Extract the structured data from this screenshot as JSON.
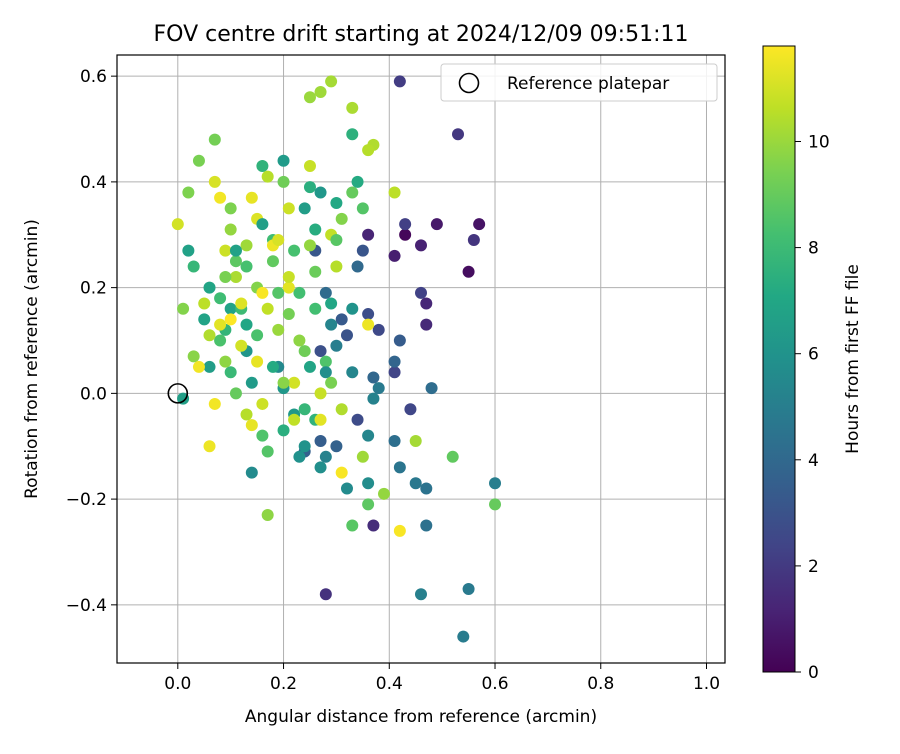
{
  "chart_data": {
    "type": "scatter",
    "title": "FOV centre drift starting at 2024/12/09 09:51:11",
    "xlabel": "Angular distance from reference (arcmin)",
    "ylabel": "Rotation from reference (arcmin)",
    "xlim": [
      -0.115,
      1.035
    ],
    "ylim": [
      -0.51,
      0.64
    ],
    "xticks": [
      0.0,
      0.2,
      0.4,
      0.6,
      0.8,
      1.0
    ],
    "xtick_labels": [
      "0.0",
      "0.2",
      "0.4",
      "0.6",
      "0.8",
      "1.0"
    ],
    "yticks": [
      -0.4,
      -0.2,
      0.0,
      0.2,
      0.4,
      0.6
    ],
    "ytick_labels": [
      "−0.4",
      "−0.2",
      "0.0",
      "0.2",
      "0.4",
      "0.6"
    ],
    "grid": true,
    "legend": {
      "position": "top-right",
      "entries": [
        "Reference platepar"
      ]
    },
    "reference_point": {
      "x": 0.0,
      "y": 0.0
    },
    "colorbar": {
      "label": "Hours from first FF file",
      "min": 0,
      "max": 11.8,
      "colormap": "viridis",
      "ticks": [
        0,
        2,
        4,
        6,
        8,
        10
      ],
      "tick_labels": [
        "0",
        "2",
        "4",
        "6",
        "8",
        "10"
      ]
    },
    "points": [
      [
        0.43,
        0.3,
        0.2
      ],
      [
        0.55,
        0.23,
        0.4
      ],
      [
        0.57,
        0.32,
        0.6
      ],
      [
        0.49,
        0.32,
        0.8
      ],
      [
        0.41,
        0.26,
        1.0
      ],
      [
        0.46,
        0.28,
        1.1
      ],
      [
        0.36,
        0.3,
        1.2
      ],
      [
        0.47,
        0.17,
        1.3
      ],
      [
        0.47,
        0.13,
        1.4
      ],
      [
        0.37,
        -0.25,
        1.5
      ],
      [
        0.28,
        -0.38,
        1.7
      ],
      [
        0.56,
        0.29,
        1.8
      ],
      [
        0.53,
        0.49,
        1.9
      ],
      [
        0.42,
        0.59,
        2.1
      ],
      [
        0.43,
        0.32,
        2.2
      ],
      [
        0.46,
        0.19,
        2.3
      ],
      [
        0.41,
        0.04,
        2.4
      ],
      [
        0.44,
        -0.03,
        2.5
      ],
      [
        0.38,
        0.12,
        2.6
      ],
      [
        0.34,
        -0.05,
        2.7
      ],
      [
        0.36,
        0.15,
        2.8
      ],
      [
        0.27,
        0.08,
        2.9
      ],
      [
        0.32,
        0.11,
        3.0
      ],
      [
        0.35,
        0.27,
        3.1
      ],
      [
        0.26,
        0.27,
        3.2
      ],
      [
        0.31,
        0.14,
        3.3
      ],
      [
        0.42,
        0.1,
        3.4
      ],
      [
        0.27,
        -0.09,
        3.5
      ],
      [
        0.24,
        -0.11,
        3.6
      ],
      [
        0.3,
        -0.1,
        3.7
      ],
      [
        0.41,
        0.06,
        3.8
      ],
      [
        0.37,
        0.03,
        3.9
      ],
      [
        0.34,
        0.24,
        4.0
      ],
      [
        0.28,
        0.19,
        4.1
      ],
      [
        0.48,
        0.01,
        4.2
      ],
      [
        0.41,
        -0.09,
        4.3
      ],
      [
        0.47,
        -0.25,
        4.4
      ],
      [
        0.47,
        -0.18,
        4.5
      ],
      [
        0.42,
        -0.14,
        4.6
      ],
      [
        0.45,
        -0.17,
        4.7
      ],
      [
        0.55,
        -0.37,
        4.8
      ],
      [
        0.54,
        -0.46,
        4.9
      ],
      [
        0.6,
        -0.17,
        5.0
      ],
      [
        0.46,
        -0.38,
        5.1
      ],
      [
        0.37,
        -0.01,
        5.2
      ],
      [
        0.29,
        0.13,
        5.3
      ],
      [
        0.33,
        0.04,
        5.4
      ],
      [
        0.19,
        0.05,
        5.5
      ],
      [
        0.14,
        -0.15,
        5.6
      ],
      [
        0.36,
        -0.17,
        5.7
      ],
      [
        0.27,
        -0.14,
        5.8
      ],
      [
        0.23,
        -0.12,
        5.9
      ],
      [
        0.24,
        -0.1,
        6.0
      ],
      [
        0.13,
        0.08,
        6.1
      ],
      [
        0.2,
        0.01,
        6.2
      ],
      [
        0.22,
        -0.04,
        6.3
      ],
      [
        0.14,
        0.02,
        6.4
      ],
      [
        0.06,
        0.05,
        6.5
      ],
      [
        0.01,
        -0.01,
        6.6
      ],
      [
        0.02,
        0.27,
        6.7
      ],
      [
        0.1,
        0.16,
        6.8
      ],
      [
        0.25,
        0.05,
        6.9
      ],
      [
        0.29,
        0.17,
        7.0
      ],
      [
        0.3,
        0.36,
        7.1
      ],
      [
        0.34,
        0.4,
        7.2
      ],
      [
        0.26,
        0.31,
        7.3
      ],
      [
        0.25,
        0.39,
        7.4
      ],
      [
        0.33,
        0.49,
        7.5
      ],
      [
        0.16,
        0.43,
        7.6
      ],
      [
        0.09,
        0.12,
        7.7
      ],
      [
        0.03,
        0.24,
        7.8
      ],
      [
        0.1,
        0.04,
        7.9
      ],
      [
        0.12,
        0.16,
        8.0
      ],
      [
        0.18,
        0.29,
        8.1
      ],
      [
        0.23,
        0.19,
        8.2
      ],
      [
        0.13,
        0.24,
        8.3
      ],
      [
        0.08,
        0.1,
        8.4
      ],
      [
        0.16,
        -0.08,
        8.5
      ],
      [
        0.17,
        -0.11,
        8.6
      ],
      [
        0.33,
        -0.25,
        8.7
      ],
      [
        0.36,
        -0.21,
        8.8
      ],
      [
        0.52,
        -0.12,
        8.9
      ],
      [
        0.6,
        -0.21,
        9.0
      ],
      [
        0.26,
        0.23,
        9.1
      ],
      [
        0.2,
        0.4,
        9.2
      ],
      [
        0.07,
        0.48,
        9.3
      ],
      [
        0.04,
        0.44,
        9.4
      ],
      [
        0.02,
        0.38,
        9.5
      ],
      [
        0.01,
        0.16,
        9.6
      ],
      [
        0.03,
        0.07,
        9.7
      ],
      [
        0.17,
        -0.23,
        9.8
      ],
      [
        0.39,
        -0.19,
        9.9
      ],
      [
        0.25,
        0.56,
        10.0
      ],
      [
        0.27,
        0.57,
        10.1
      ],
      [
        0.29,
        0.59,
        10.2
      ],
      [
        0.33,
        0.54,
        10.3
      ],
      [
        0.37,
        0.47,
        10.4
      ],
      [
        0.36,
        0.46,
        10.5
      ],
      [
        0.41,
        0.38,
        10.6
      ],
      [
        0.29,
        0.3,
        10.7
      ],
      [
        0.25,
        0.43,
        10.8
      ],
      [
        0.21,
        0.35,
        10.9
      ],
      [
        0.0,
        0.32,
        11.0
      ],
      [
        0.07,
        0.4,
        11.1
      ],
      [
        0.15,
        0.33,
        11.2
      ],
      [
        0.21,
        0.2,
        11.3
      ],
      [
        0.15,
        0.06,
        11.4
      ],
      [
        0.06,
        -0.1,
        11.5
      ],
      [
        0.07,
        -0.02,
        11.6
      ],
      [
        0.31,
        -0.15,
        11.7
      ],
      [
        0.42,
        -0.26,
        11.7
      ],
      [
        0.45,
        -0.09,
        10.2
      ],
      [
        0.36,
        0.13,
        11.5
      ],
      [
        0.3,
        0.24,
        10.5
      ],
      [
        0.22,
        0.02,
        11.0
      ],
      [
        0.27,
        0.0,
        10.8
      ],
      [
        0.18,
        0.28,
        11.5
      ],
      [
        0.12,
        0.17,
        11.2
      ],
      [
        0.09,
        0.27,
        10.9
      ],
      [
        0.14,
        0.37,
        11.4
      ],
      [
        0.05,
        0.17,
        10.6
      ],
      [
        0.11,
        0.22,
        10.3
      ],
      [
        0.19,
        0.12,
        10.0
      ],
      [
        0.23,
        0.1,
        9.8
      ],
      [
        0.15,
        0.2,
        9.6
      ],
      [
        0.08,
        0.13,
        11.3
      ],
      [
        0.1,
        0.31,
        9.9
      ],
      [
        0.06,
        0.11,
        10.4
      ],
      [
        0.12,
        0.09,
        11.0
      ],
      [
        0.17,
        0.16,
        10.7
      ],
      [
        0.14,
        -0.06,
        11.4
      ],
      [
        0.16,
        -0.02,
        10.9
      ],
      [
        0.2,
        0.02,
        9.7
      ],
      [
        0.24,
        0.08,
        9.2
      ],
      [
        0.09,
        0.22,
        9.4
      ],
      [
        0.13,
        0.28,
        10.1
      ],
      [
        0.17,
        0.41,
        10.5
      ],
      [
        0.1,
        0.35,
        9.5
      ],
      [
        0.18,
        0.25,
        8.9
      ],
      [
        0.21,
        0.15,
        9.3
      ],
      [
        0.15,
        0.11,
        8.4
      ],
      [
        0.08,
        0.18,
        8.1
      ],
      [
        0.11,
        0.25,
        8.8
      ],
      [
        0.19,
        0.19,
        8.6
      ],
      [
        0.22,
        0.27,
        8.3
      ],
      [
        0.26,
        0.16,
        8.2
      ],
      [
        0.28,
        0.06,
        8.5
      ],
      [
        0.3,
        0.29,
        8.7
      ],
      [
        0.33,
        0.38,
        9.0
      ],
      [
        0.31,
        0.33,
        9.6
      ],
      [
        0.35,
        0.35,
        8.6
      ],
      [
        0.24,
        -0.03,
        7.8
      ],
      [
        0.26,
        -0.05,
        7.6
      ],
      [
        0.2,
        -0.07,
        7.4
      ],
      [
        0.18,
        0.05,
        7.2
      ],
      [
        0.13,
        0.13,
        7.0
      ],
      [
        0.06,
        0.2,
        6.9
      ],
      [
        0.05,
        0.14,
        6.8
      ],
      [
        0.11,
        0.27,
        6.7
      ],
      [
        0.16,
        0.32,
        6.6
      ],
      [
        0.24,
        0.35,
        6.5
      ],
      [
        0.2,
        0.44,
        6.4
      ],
      [
        0.27,
        0.38,
        6.2
      ],
      [
        0.33,
        0.16,
        6.0
      ],
      [
        0.28,
        0.04,
        5.8
      ],
      [
        0.32,
        -0.18,
        5.6
      ],
      [
        0.36,
        -0.08,
        5.4
      ],
      [
        0.28,
        -0.12,
        5.2
      ],
      [
        0.3,
        0.09,
        5.0
      ],
      [
        0.38,
        0.01,
        4.8
      ],
      [
        0.25,
        0.28,
        9.9
      ],
      [
        0.21,
        0.22,
        10.8
      ],
      [
        0.11,
        0.0,
        9.0
      ],
      [
        0.09,
        0.06,
        9.8
      ],
      [
        0.13,
        -0.04,
        10.5
      ],
      [
        0.04,
        0.05,
        11.6
      ],
      [
        0.1,
        0.14,
        11.8
      ],
      [
        0.16,
        0.19,
        11.7
      ],
      [
        0.08,
        0.37,
        11.6
      ],
      [
        0.19,
        0.29,
        11.1
      ],
      [
        0.27,
        -0.05,
        11.3
      ],
      [
        0.22,
        -0.05,
        10.7
      ],
      [
        0.31,
        -0.03,
        10.4
      ],
      [
        0.35,
        -0.12,
        10.1
      ],
      [
        0.29,
        0.02,
        9.4
      ]
    ]
  }
}
